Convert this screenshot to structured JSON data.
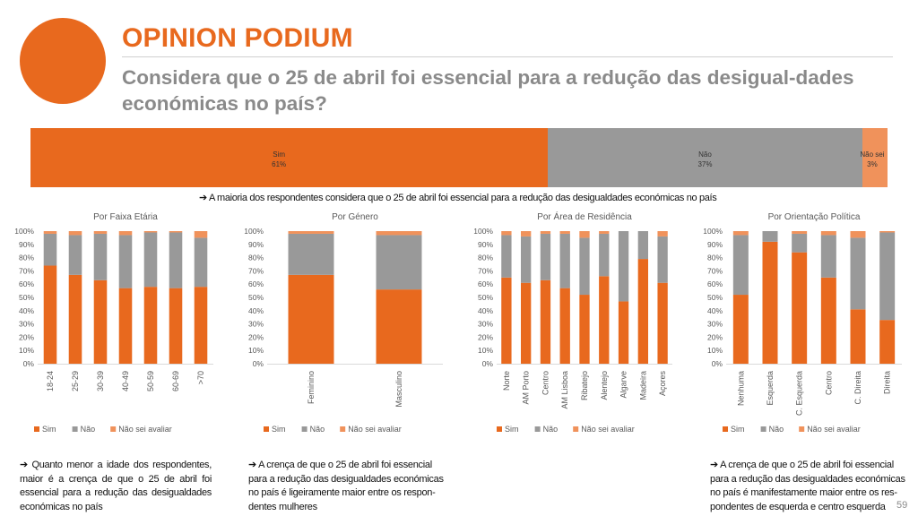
{
  "header": {
    "brand": "OPINION PODIUM",
    "question": "Considera que o 25 de abril foi essencial para a redução das desigual-dades económicas no país?"
  },
  "colors": {
    "sim": "#E8691E",
    "nao": "#999999",
    "nsa": "#F0925B"
  },
  "overall": {
    "segments": [
      {
        "name": "Sim",
        "value": 61,
        "label": "61%"
      },
      {
        "name": "Não",
        "value": 37,
        "label": "37%"
      },
      {
        "name": "Não sei",
        "value": 3,
        "label": "3%"
      }
    ]
  },
  "summary": "➔ A maioria dos respondentes considera que o 25 de abril foi essencial para a redução das desigualdades económicas no país",
  "chart_data": [
    {
      "type": "bar",
      "stacked": true,
      "title": "Por Faixa Etária",
      "categories": [
        "18-24",
        "25-29",
        "30-39",
        "40-49",
        "50-59",
        "60-69",
        ">70"
      ],
      "ylim": [
        0,
        100
      ],
      "yticks": [
        "0%",
        "10%",
        "20%",
        "30%",
        "40%",
        "50%",
        "60%",
        "70%",
        "80%",
        "90%",
        "100%"
      ],
      "series": [
        {
          "name": "Sim",
          "values": [
            74,
            67,
            63,
            57,
            58,
            57,
            58
          ]
        },
        {
          "name": "Não",
          "values": [
            24,
            30,
            35,
            40,
            41,
            42,
            37
          ]
        },
        {
          "name": "Não sei avaliar",
          "values": [
            2,
            3,
            2,
            3,
            1,
            1,
            5
          ]
        }
      ],
      "legend": "bottom"
    },
    {
      "type": "bar",
      "stacked": true,
      "title": "Por Género",
      "categories": [
        "Feminino",
        "Masculino"
      ],
      "ylim": [
        0,
        100
      ],
      "yticks": [
        "0%",
        "10%",
        "20%",
        "30%",
        "40%",
        "50%",
        "60%",
        "70%",
        "80%",
        "90%",
        "100%"
      ],
      "series": [
        {
          "name": "Sim",
          "values": [
            67,
            56
          ]
        },
        {
          "name": "Não",
          "values": [
            31,
            41
          ]
        },
        {
          "name": "Não sei avaliar",
          "values": [
            2,
            3
          ]
        }
      ],
      "legend": "bottom"
    },
    {
      "type": "bar",
      "stacked": true,
      "title": "Por Área de Residência",
      "categories": [
        "Norte",
        "AM Porto",
        "Centro",
        "AM Lisboa",
        "Ribatejo",
        "Alentejo",
        "Algarve",
        "Madeira",
        "Açores"
      ],
      "ylim": [
        0,
        100
      ],
      "yticks": [
        "0%",
        "10%",
        "20%",
        "30%",
        "40%",
        "50%",
        "60%",
        "70%",
        "80%",
        "90%",
        "100%"
      ],
      "series": [
        {
          "name": "Sim",
          "values": [
            65,
            61,
            63,
            57,
            52,
            66,
            47,
            79,
            61
          ]
        },
        {
          "name": "Não",
          "values": [
            32,
            35,
            35,
            41,
            43,
            32,
            53,
            21,
            35
          ]
        },
        {
          "name": "Não sei avaliar",
          "values": [
            3,
            4,
            2,
            2,
            5,
            2,
            0,
            0,
            4
          ]
        }
      ],
      "legend": "bottom"
    },
    {
      "type": "bar",
      "stacked": true,
      "title": "Por Orientação Política",
      "categories": [
        "Nenhuma",
        "Esquerda",
        "C. Esquerda",
        "Centro",
        "C. Direita",
        "Direita"
      ],
      "ylim": [
        0,
        100
      ],
      "yticks": [
        "0%",
        "10%",
        "20%",
        "30%",
        "40%",
        "50%",
        "60%",
        "70%",
        "80%",
        "90%",
        "100%"
      ],
      "series": [
        {
          "name": "Sim",
          "values": [
            52,
            92,
            84,
            65,
            41,
            33
          ]
        },
        {
          "name": "Não",
          "values": [
            45,
            8,
            14,
            32,
            54,
            66
          ]
        },
        {
          "name": "Não sei avaliar",
          "values": [
            3,
            0,
            2,
            3,
            5,
            1
          ]
        }
      ],
      "legend": "bottom"
    }
  ],
  "notes": {
    "left": "➔ Quanto menor a idade dos respondentes, maior é a crença de que o 25 de abril foi essencial para a redução das desigualdades económicas no país",
    "middle": "➔ A crença de que o 25 de abril foi essencial para a redução das desigualdades económicas no país é ligeiramente maior entre os respon-dentes mulheres",
    "right": "➔ A crença de que o 25 de abril foi essencial para a redução das desigualdades económicas no país é manifestamente maior entre os res-pondentes de esquerda e centro esquerda"
  },
  "page_number": "59"
}
